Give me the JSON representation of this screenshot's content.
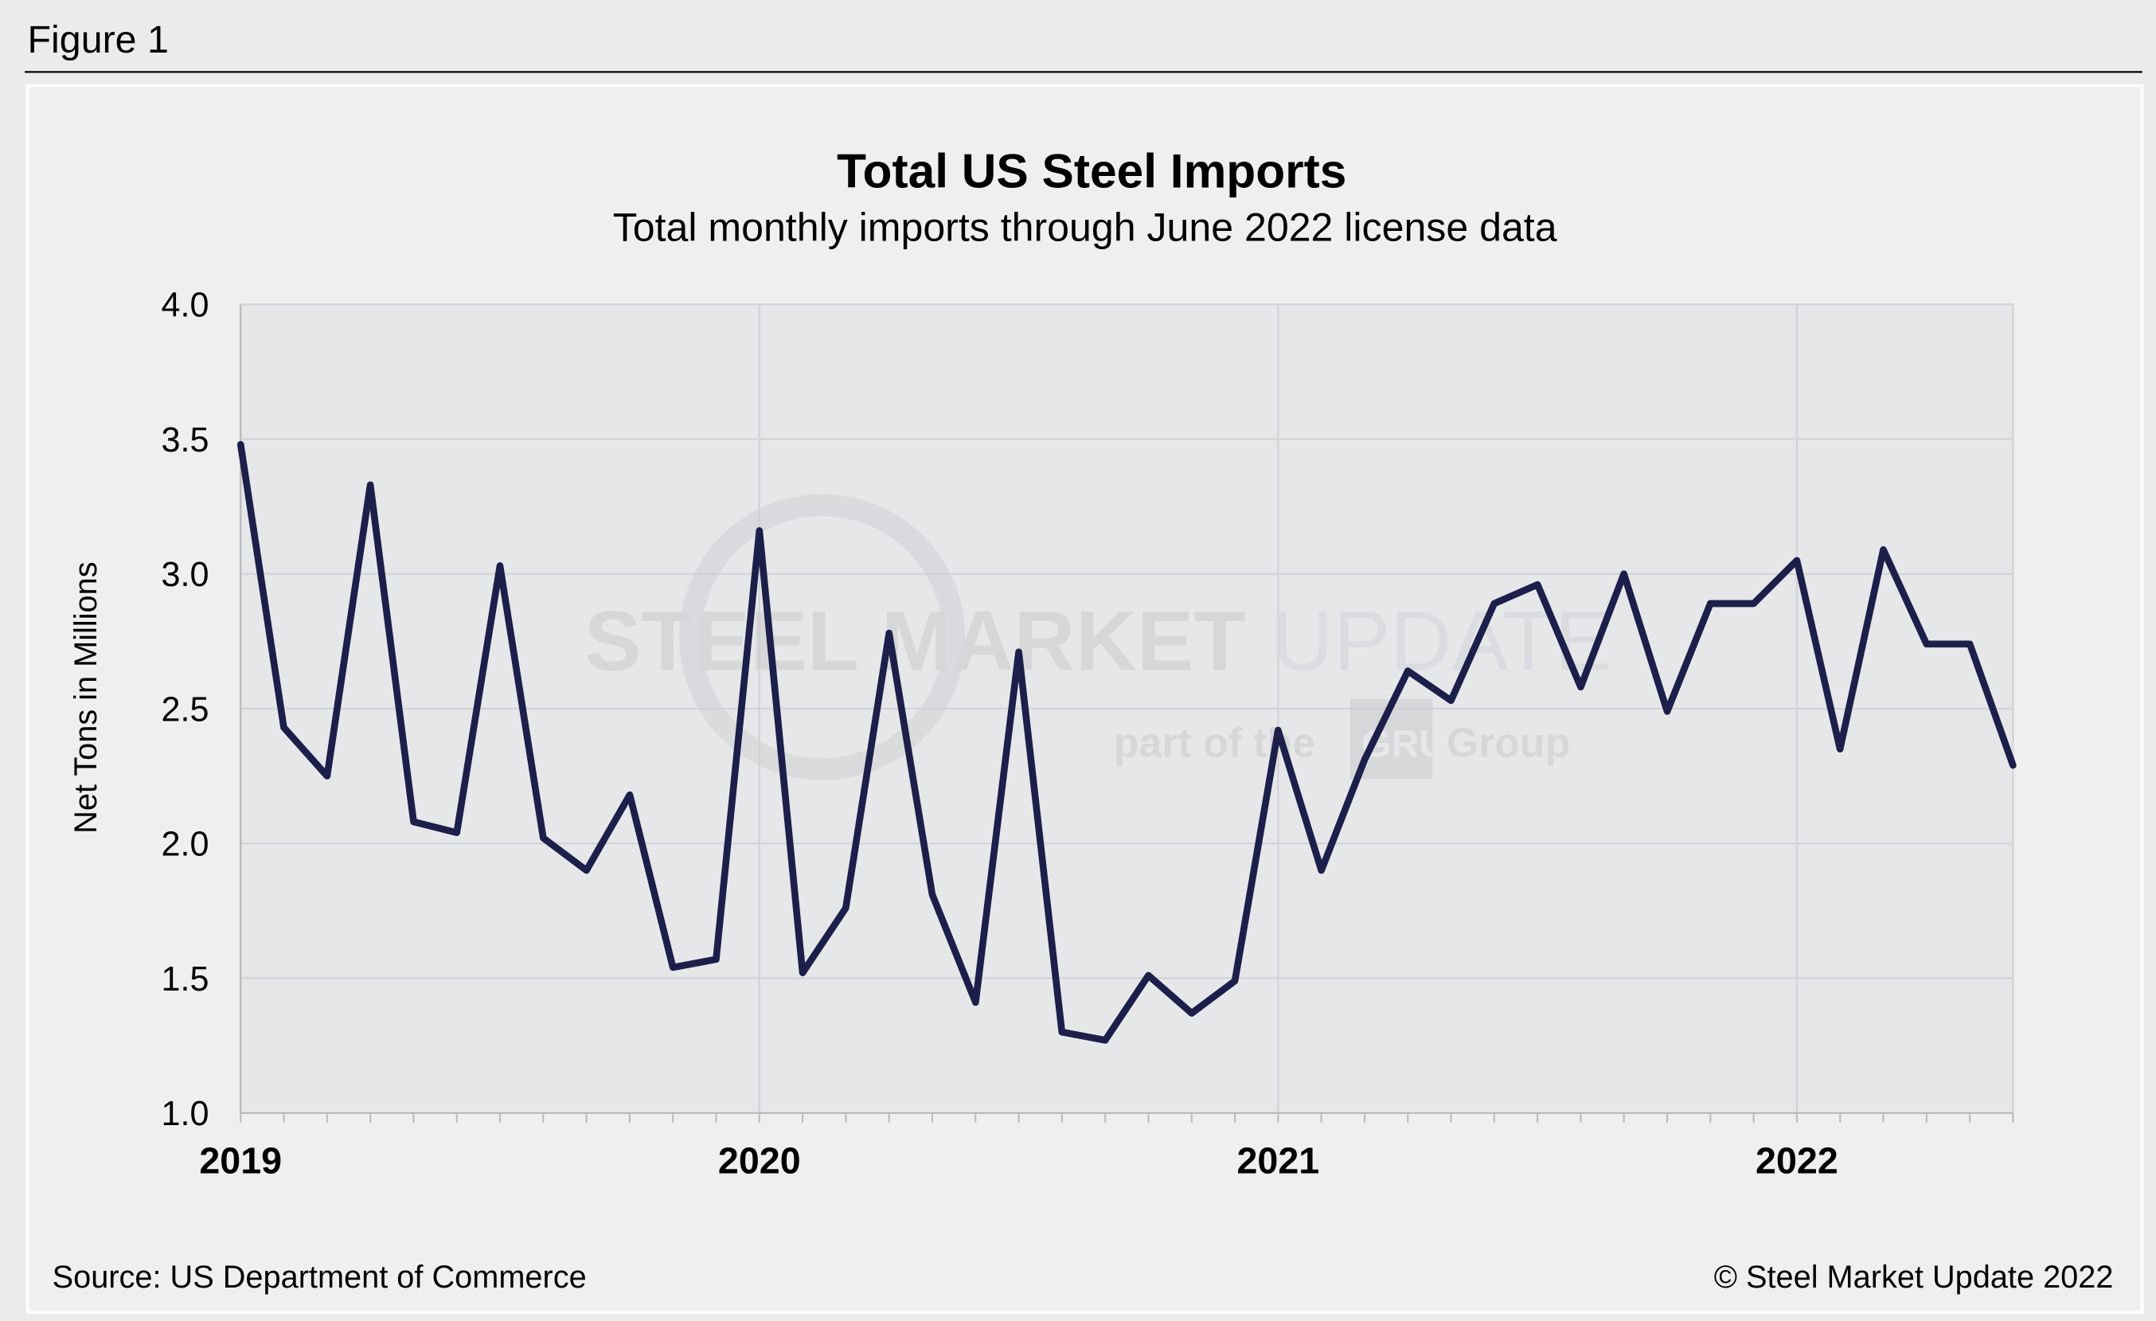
{
  "figure_label": "Figure 1",
  "source": "Source: US Department of Commerce",
  "copyright": "© Steel Market Update 2022",
  "watermark": {
    "line1a": "STEEL MARKET",
    "line1b": "UPDATE",
    "line2a": "part of the",
    "line2b": "GRU",
    "line2c": "Group"
  },
  "colors": {
    "line": "#1c1f4a",
    "plot_bg": "#e6e7e9",
    "panel_bg": "#efefef",
    "grid": "#d2d3d6"
  },
  "chart_data": {
    "type": "line",
    "title": "Total US Steel Imports",
    "subtitle": "Total monthly imports through June 2022 license data",
    "xlabel": "",
    "ylabel": "Net Tons in Millions",
    "ylim": [
      1.0,
      4.0
    ],
    "yticks": [
      "1.0",
      "1.5",
      "2.0",
      "2.5",
      "3.0",
      "3.5",
      "4.0"
    ],
    "xticks": [
      "2019",
      "2020",
      "2021",
      "2022"
    ],
    "grid": true,
    "x_start": "2019-01",
    "x_end": "2022-06",
    "series": [
      {
        "values": [
          3.48,
          2.43,
          2.25,
          3.33,
          2.08,
          2.04,
          3.03,
          2.02,
          1.9,
          2.18,
          1.54,
          1.57,
          3.16,
          1.52,
          1.76,
          2.78,
          1.81,
          1.41,
          2.71,
          1.3,
          1.27,
          1.51,
          1.37,
          1.49,
          2.42,
          1.9,
          2.31,
          2.64,
          2.53,
          2.89,
          2.96,
          2.58,
          3.0,
          2.49,
          2.89,
          2.89,
          3.05,
          2.35,
          3.09,
          2.74,
          2.74,
          2.29
        ]
      }
    ]
  }
}
